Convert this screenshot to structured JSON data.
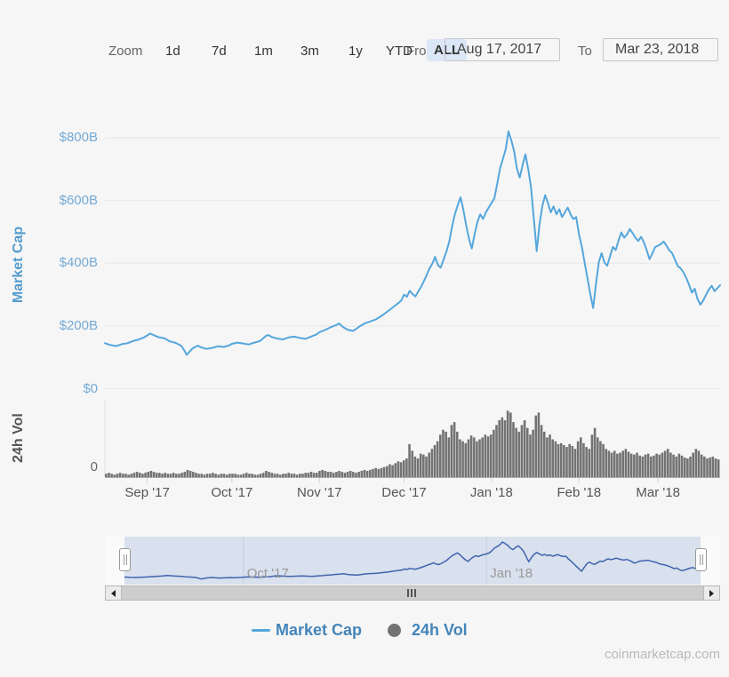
{
  "toolbar": {
    "zoom_label": "Zoom",
    "range_buttons": [
      "1d",
      "7d",
      "1m",
      "3m",
      "1y",
      "YTD",
      "ALL"
    ],
    "selected_range": "ALL",
    "from_label": "From",
    "from_value": "Aug 17, 2017",
    "to_label": "To",
    "to_value": "Mar 23, 2018"
  },
  "colors": {
    "market_cap_line": "#54a6dc",
    "axis_label_blue": "#74aad6",
    "axis_title_blue": "#539bcd",
    "volume_gray": "#737373",
    "navigator_line": "#3f64ad",
    "navigator_mask": "rgba(102,133,194,0.22)",
    "legend_text_blue": "#4585ba",
    "gridline": "#e7e7e7",
    "vol_axis_line": "#ccd3e2"
  },
  "legend": {
    "market_cap_label": "Market Cap",
    "vol_label": "24h Vol"
  },
  "footer": {
    "credit": "coinmarketcap.com"
  },
  "navigator": {
    "labels": [
      {
        "label": "Oct '17",
        "day": 45
      },
      {
        "label": "Jan '18",
        "day": 137
      }
    ]
  },
  "chart_data": [
    {
      "type": "line",
      "name": "Market Cap",
      "ylabel": "Market Cap",
      "unit": "$B",
      "x_start": "Aug 17, 2017",
      "x_end": "Mar 23, 2018",
      "ylim": [
        0,
        850
      ],
      "grid": true,
      "legend_position": "bottom",
      "yticks": [
        {
          "label": "$800B",
          "value": 800
        },
        {
          "label": "$600B",
          "value": 600
        },
        {
          "label": "$400B",
          "value": 400
        },
        {
          "label": "$200B",
          "value": 200
        },
        {
          "label": "$0",
          "value": 0
        }
      ],
      "x_axis_months": [
        {
          "label": "Sep '17",
          "day": 15
        },
        {
          "label": "Oct '17",
          "day": 45
        },
        {
          "label": "Nov '17",
          "day": 76
        },
        {
          "label": "Dec '17",
          "day": 106
        },
        {
          "label": "Jan '18",
          "day": 137
        },
        {
          "label": "Feb '18",
          "day": 168
        },
        {
          "label": "Mar '18",
          "day": 196
        }
      ],
      "points_format": "[day_offset_from_Aug17_2017, market_cap_billions_usd]",
      "points": [
        [
          0,
          145
        ],
        [
          2,
          139
        ],
        [
          4,
          136
        ],
        [
          6,
          142
        ],
        [
          8,
          145
        ],
        [
          10,
          152
        ],
        [
          12,
          157
        ],
        [
          14,
          164
        ],
        [
          15,
          170
        ],
        [
          16,
          176
        ],
        [
          17,
          172
        ],
        [
          19,
          164
        ],
        [
          21,
          161
        ],
        [
          22,
          156
        ],
        [
          23,
          151
        ],
        [
          25,
          146
        ],
        [
          27,
          137
        ],
        [
          28,
          124
        ],
        [
          29,
          108
        ],
        [
          30,
          118
        ],
        [
          31,
          128
        ],
        [
          32,
          133
        ],
        [
          33,
          137
        ],
        [
          34,
          132
        ],
        [
          36,
          127
        ],
        [
          38,
          130
        ],
        [
          40,
          135
        ],
        [
          42,
          133
        ],
        [
          44,
          138
        ],
        [
          45,
          143
        ],
        [
          47,
          147
        ],
        [
          49,
          144
        ],
        [
          51,
          141
        ],
        [
          53,
          147
        ],
        [
          55,
          152
        ],
        [
          56,
          160
        ],
        [
          57,
          168
        ],
        [
          58,
          171
        ],
        [
          59,
          165
        ],
        [
          61,
          160
        ],
        [
          63,
          157
        ],
        [
          65,
          163
        ],
        [
          67,
          166
        ],
        [
          69,
          162
        ],
        [
          71,
          159
        ],
        [
          73,
          166
        ],
        [
          75,
          173
        ],
        [
          76,
          180
        ],
        [
          78,
          187
        ],
        [
          80,
          196
        ],
        [
          82,
          203
        ],
        [
          83,
          208
        ],
        [
          84,
          199
        ],
        [
          85,
          193
        ],
        [
          86,
          188
        ],
        [
          88,
          184
        ],
        [
          90,
          197
        ],
        [
          92,
          208
        ],
        [
          94,
          214
        ],
        [
          96,
          221
        ],
        [
          98,
          232
        ],
        [
          100,
          245
        ],
        [
          102,
          259
        ],
        [
          104,
          273
        ],
        [
          105,
          281
        ],
        [
          106,
          300
        ],
        [
          107,
          293
        ],
        [
          108,
          312
        ],
        [
          109,
          302
        ],
        [
          110,
          294
        ],
        [
          111,
          309
        ],
        [
          112,
          324
        ],
        [
          113,
          342
        ],
        [
          114,
          362
        ],
        [
          115,
          383
        ],
        [
          116,
          398
        ],
        [
          117,
          420
        ],
        [
          118,
          394
        ],
        [
          119,
          386
        ],
        [
          120,
          411
        ],
        [
          121,
          437
        ],
        [
          122,
          468
        ],
        [
          123,
          515
        ],
        [
          124,
          556
        ],
        [
          125,
          584
        ],
        [
          126,
          610
        ],
        [
          127,
          572
        ],
        [
          128,
          522
        ],
        [
          129,
          478
        ],
        [
          130,
          447
        ],
        [
          131,
          492
        ],
        [
          132,
          531
        ],
        [
          133,
          556
        ],
        [
          134,
          541
        ],
        [
          135,
          562
        ],
        [
          136,
          577
        ],
        [
          137,
          592
        ],
        [
          138,
          607
        ],
        [
          139,
          652
        ],
        [
          140,
          701
        ],
        [
          141,
          732
        ],
        [
          142,
          763
        ],
        [
          143,
          820
        ],
        [
          144,
          792
        ],
        [
          145,
          757
        ],
        [
          146,
          702
        ],
        [
          147,
          673
        ],
        [
          148,
          712
        ],
        [
          149,
          747
        ],
        [
          150,
          701
        ],
        [
          151,
          642
        ],
        [
          152,
          541
        ],
        [
          153,
          438
        ],
        [
          154,
          522
        ],
        [
          155,
          582
        ],
        [
          156,
          617
        ],
        [
          157,
          591
        ],
        [
          158,
          562
        ],
        [
          159,
          581
        ],
        [
          160,
          556
        ],
        [
          161,
          572
        ],
        [
          162,
          547
        ],
        [
          163,
          562
        ],
        [
          164,
          577
        ],
        [
          165,
          556
        ],
        [
          166,
          541
        ],
        [
          167,
          547
        ],
        [
          168,
          492
        ],
        [
          169,
          452
        ],
        [
          170,
          402
        ],
        [
          171,
          352
        ],
        [
          172,
          302
        ],
        [
          173,
          257
        ],
        [
          174,
          332
        ],
        [
          175,
          402
        ],
        [
          176,
          432
        ],
        [
          177,
          402
        ],
        [
          178,
          392
        ],
        [
          179,
          422
        ],
        [
          180,
          452
        ],
        [
          181,
          442
        ],
        [
          182,
          472
        ],
        [
          183,
          498
        ],
        [
          184,
          481
        ],
        [
          185,
          491
        ],
        [
          186,
          509
        ],
        [
          187,
          496
        ],
        [
          188,
          481
        ],
        [
          189,
          471
        ],
        [
          190,
          484
        ],
        [
          191,
          466
        ],
        [
          192,
          441
        ],
        [
          193,
          413
        ],
        [
          194,
          431
        ],
        [
          195,
          452
        ],
        [
          196,
          456
        ],
        [
          197,
          461
        ],
        [
          198,
          469
        ],
        [
          199,
          456
        ],
        [
          200,
          441
        ],
        [
          201,
          432
        ],
        [
          202,
          411
        ],
        [
          203,
          391
        ],
        [
          204,
          384
        ],
        [
          205,
          371
        ],
        [
          206,
          353
        ],
        [
          207,
          331
        ],
        [
          208,
          306
        ],
        [
          209,
          319
        ],
        [
          210,
          286
        ],
        [
          211,
          268
        ],
        [
          212,
          281
        ],
        [
          213,
          299
        ],
        [
          214,
          316
        ],
        [
          215,
          328
        ],
        [
          216,
          311
        ],
        [
          217,
          320
        ],
        [
          218,
          330
        ]
      ]
    },
    {
      "type": "column",
      "name": "24h Vol",
      "ylabel": "24h Vol",
      "unit": "$B",
      "ylim": [
        0,
        80
      ],
      "yticks": [
        {
          "label": "0",
          "value": 0
        }
      ],
      "values_format": "daily_24h_volume_billions_usd_from_Aug17_2017",
      "values": [
        4,
        5,
        4,
        3,
        4,
        5,
        4,
        4,
        3,
        4,
        5,
        6,
        5,
        4,
        5,
        6,
        7,
        6,
        5,
        5,
        4,
        5,
        4,
        4,
        5,
        4,
        4,
        5,
        6,
        8,
        7,
        6,
        5,
        4,
        4,
        3,
        4,
        4,
        5,
        4,
        3,
        4,
        4,
        3,
        4,
        4,
        4,
        3,
        3,
        4,
        5,
        4,
        4,
        3,
        3,
        4,
        5,
        7,
        6,
        5,
        4,
        4,
        3,
        4,
        4,
        5,
        4,
        4,
        3,
        4,
        4,
        5,
        5,
        6,
        5,
        5,
        7,
        8,
        7,
        6,
        6,
        5,
        6,
        7,
        6,
        5,
        6,
        7,
        6,
        5,
        6,
        7,
        8,
        7,
        8,
        9,
        10,
        9,
        10,
        11,
        12,
        14,
        13,
        15,
        17,
        16,
        18,
        20,
        35,
        28,
        22,
        20,
        25,
        24,
        22,
        26,
        30,
        34,
        38,
        45,
        50,
        48,
        42,
        55,
        58,
        48,
        40,
        38,
        36,
        40,
        44,
        42,
        38,
        40,
        42,
        45,
        43,
        45,
        50,
        55,
        60,
        63,
        60,
        70,
        68,
        58,
        52,
        48,
        55,
        60,
        52,
        45,
        50,
        65,
        68,
        55,
        48,
        42,
        45,
        40,
        38,
        35,
        36,
        34,
        32,
        35,
        33,
        30,
        38,
        42,
        36,
        32,
        30,
        45,
        52,
        42,
        38,
        35,
        30,
        28,
        26,
        28,
        25,
        26,
        28,
        30,
        27,
        25,
        24,
        26,
        23,
        22,
        24,
        25,
        22,
        23,
        25,
        24,
        26,
        28,
        30,
        26,
        24,
        22,
        25,
        23,
        21,
        20,
        22,
        26,
        30,
        28,
        24,
        22,
        20,
        21,
        22,
        20,
        19
      ]
    }
  ]
}
